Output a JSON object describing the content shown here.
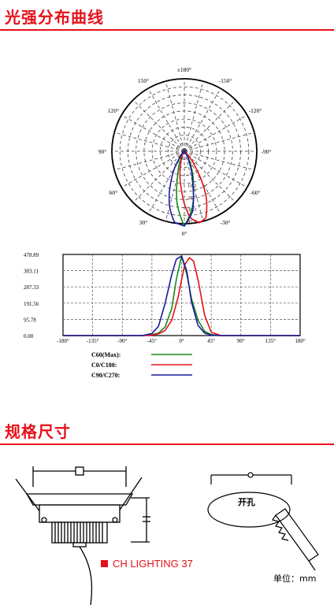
{
  "section1": {
    "title": "光强分布曲线"
  },
  "section2": {
    "title": "规格尺寸"
  },
  "polar": {
    "angle_labels": [
      "±180°",
      "-150°",
      "150°",
      "-120°",
      "120°",
      "-90°",
      "90°",
      "-60°",
      "60°",
      "-30°",
      "30°",
      "0°"
    ],
    "radial_labels": [
      "19.2",
      "28.7",
      "38.3",
      "47.9"
    ]
  },
  "chart_data": {
    "type": "line",
    "x_ticks": [
      "-180°",
      "-135°",
      "-90°",
      "-45°",
      "0°",
      "45°",
      "90°",
      "135°",
      "180°"
    ],
    "y_ticks": [
      "478.89",
      "383.11",
      "287.33",
      "191.56",
      "95.78",
      "0.00"
    ],
    "xlim": [
      -180,
      180
    ],
    "ylim": [
      0,
      478.89
    ],
    "grid": true,
    "legend_position": "bottom-left",
    "series": [
      {
        "name": "C60(Max):",
        "color": "#1a8a1a",
        "x": [
          -180,
          -60,
          -45,
          -35,
          -25,
          -15,
          -8,
          0,
          8,
          15,
          25,
          35,
          45,
          60,
          180
        ],
        "y": [
          0,
          0,
          5,
          15,
          50,
          160,
          330,
          470,
          360,
          220,
          90,
          25,
          6,
          0,
          0
        ]
      },
      {
        "name": "C0/C180:",
        "color": "#e8101a",
        "x": [
          -180,
          -60,
          -45,
          -35,
          -25,
          -15,
          -5,
          0,
          5,
          12,
          18,
          25,
          35,
          45,
          60,
          180
        ],
        "y": [
          0,
          0,
          3,
          10,
          30,
          90,
          230,
          330,
          420,
          460,
          440,
          330,
          120,
          20,
          0,
          0
        ]
      },
      {
        "name": "C90/C270:",
        "color": "#1a1aa0",
        "x": [
          -180,
          -60,
          -45,
          -35,
          -25,
          -15,
          -8,
          0,
          8,
          15,
          25,
          35,
          45,
          60,
          180
        ],
        "y": [
          0,
          0,
          12,
          55,
          190,
          360,
          450,
          470,
          380,
          200,
          60,
          15,
          3,
          0,
          0
        ]
      }
    ]
  },
  "dimensions": {
    "cutout_label": "开孔"
  },
  "brand": {
    "text": "CH LIGHTING   37"
  },
  "unit": {
    "text": "单位：mm"
  }
}
